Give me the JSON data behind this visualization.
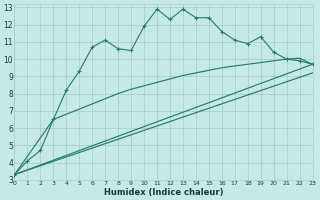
{
  "xlabel": "Humidex (Indice chaleur)",
  "bg_color": "#c5eae6",
  "grid_color": "#aacfca",
  "line_color": "#2a7a65",
  "x_ticks": [
    0,
    1,
    2,
    3,
    4,
    5,
    6,
    7,
    8,
    9,
    10,
    11,
    12,
    13,
    14,
    15,
    16,
    17,
    18,
    19,
    20,
    21,
    22,
    23
  ],
  "y_ticks": [
    3,
    4,
    5,
    6,
    7,
    8,
    9,
    10,
    11,
    12,
    13
  ],
  "xlim": [
    0,
    23
  ],
  "ylim": [
    3,
    13.2
  ],
  "line1_x": [
    0,
    1,
    2,
    3,
    4,
    5,
    6,
    7,
    8,
    9,
    10,
    11,
    12,
    13,
    14,
    15,
    16,
    17,
    18,
    19,
    20,
    21,
    22,
    23
  ],
  "line1_y": [
    3.3,
    4.1,
    4.7,
    6.5,
    8.2,
    9.3,
    10.7,
    11.1,
    10.6,
    10.5,
    11.9,
    12.9,
    12.3,
    12.9,
    12.4,
    12.4,
    11.6,
    11.1,
    10.9,
    11.3,
    10.4,
    10.0,
    9.9,
    9.7
  ],
  "line2_x": [
    0,
    3,
    4,
    5,
    6,
    7,
    8,
    9,
    10,
    11,
    12,
    13,
    14,
    15,
    16,
    17,
    18,
    19,
    20,
    21,
    22,
    23
  ],
  "line2_y": [
    3.3,
    6.5,
    6.8,
    7.1,
    7.4,
    7.7,
    8.0,
    8.25,
    8.45,
    8.65,
    8.85,
    9.05,
    9.2,
    9.35,
    9.5,
    9.6,
    9.7,
    9.8,
    9.9,
    10.0,
    10.05,
    9.7
  ],
  "line3_x": [
    0,
    23
  ],
  "line3_y": [
    3.3,
    9.7
  ],
  "line4_x": [
    0,
    23
  ],
  "line4_y": [
    3.3,
    9.2
  ]
}
